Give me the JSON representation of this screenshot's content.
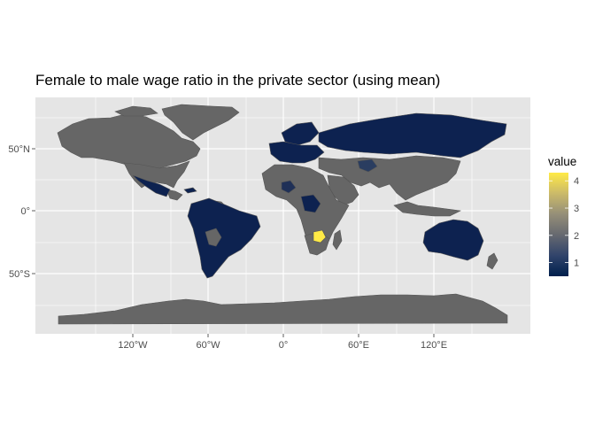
{
  "chart_data": {
    "type": "choropleth",
    "title": "Female to male wage ratio in the private sector (using mean)",
    "x_ticks": [
      "120°W",
      "60°W",
      "0°",
      "60°E",
      "120°E"
    ],
    "y_ticks": [
      "50°N",
      "0°",
      "50°S"
    ],
    "legend": {
      "title": "value",
      "ticks": [
        "1",
        "2",
        "3",
        "4"
      ],
      "range": [
        0.5,
        4.3
      ],
      "colors": [
        "#00204d",
        "#31446b",
        "#666970",
        "#958f78",
        "#cbba69",
        "#ffea46"
      ]
    },
    "no_data_color": "#666666",
    "panel_color": "#e5e5e5",
    "grid_color": "#ffffff"
  }
}
